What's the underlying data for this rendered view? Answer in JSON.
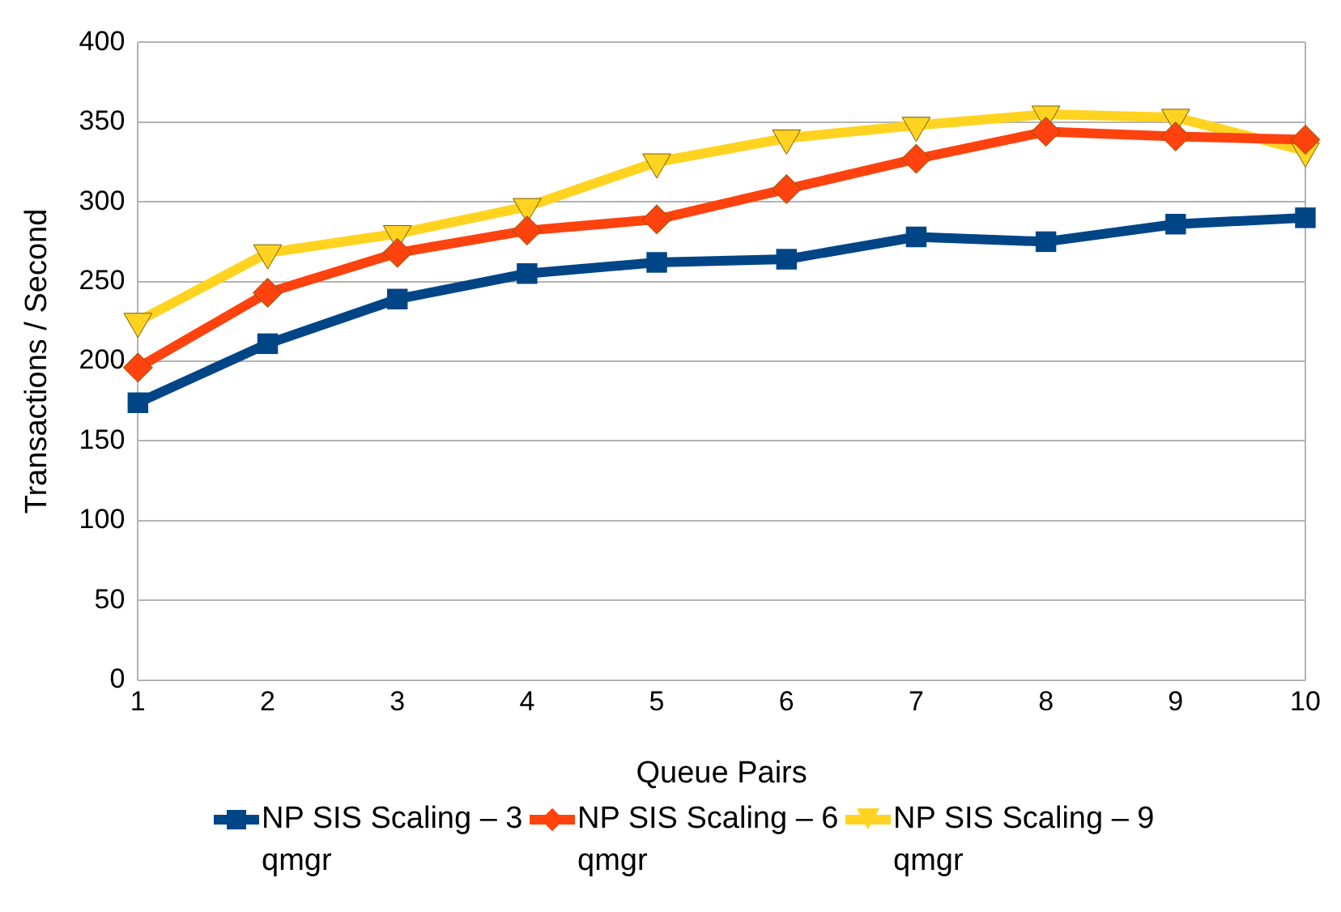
{
  "chart_data": {
    "type": "line",
    "xlabel": "Queue Pairs",
    "ylabel": "Transactions / Second",
    "categories": [
      "1",
      "2",
      "3",
      "4",
      "5",
      "6",
      "7",
      "8",
      "9",
      "10"
    ],
    "series": [
      {
        "name": "NP SIS Scaling – 3 qmgr",
        "color": "#004586",
        "marker": "square",
        "values": [
          174,
          211,
          239,
          255,
          262,
          264,
          278,
          275,
          286,
          290
        ]
      },
      {
        "name": "NP SIS Scaling – 6 qmgr",
        "color": "#ff420e",
        "marker": "diamond",
        "values": [
          196,
          243,
          268,
          282,
          289,
          308,
          327,
          344,
          341,
          339
        ]
      },
      {
        "name": "NP SIS Scaling – 9 qmgr",
        "color": "#ffd320",
        "marker": "triangle",
        "values": [
          225,
          268,
          280,
          297,
          325,
          340,
          348,
          355,
          353,
          332
        ]
      }
    ],
    "ylim": [
      0,
      400
    ],
    "yticks": [
      0,
      50,
      100,
      150,
      200,
      250,
      300,
      350,
      400
    ],
    "grid": "y",
    "legend": "bottom",
    "line_style": "solid"
  }
}
